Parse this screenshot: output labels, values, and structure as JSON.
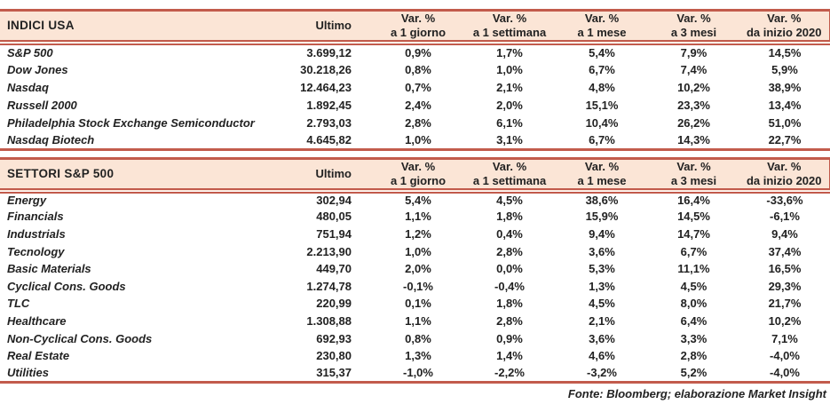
{
  "colors": {
    "line": "#c25b4c",
    "header_bg": "#fbe5d6",
    "text": "#222222"
  },
  "header_labels": {
    "ultimo": "Ultimo",
    "var": "Var. %",
    "periods": [
      "a 1 giorno",
      "a 1 settimana",
      "a 1 mese",
      "a 3 mesi",
      "da inizio 2020"
    ]
  },
  "tables": [
    {
      "title": "INDICI USA",
      "rows": [
        {
          "name": "S&P 500",
          "ultimo": "3.699,12",
          "vars": [
            "0,9%",
            "1,7%",
            "5,4%",
            "7,9%",
            "14,5%"
          ]
        },
        {
          "name": "Dow Jones",
          "ultimo": "30.218,26",
          "vars": [
            "0,8%",
            "1,0%",
            "6,7%",
            "7,4%",
            "5,9%"
          ]
        },
        {
          "name": "Nasdaq",
          "ultimo": "12.464,23",
          "vars": [
            "0,7%",
            "2,1%",
            "4,8%",
            "10,2%",
            "38,9%"
          ]
        },
        {
          "name": "Russell 2000",
          "ultimo": "1.892,45",
          "vars": [
            "2,4%",
            "2,0%",
            "15,1%",
            "23,3%",
            "13,4%"
          ]
        },
        {
          "name": "Philadelphia Stock Exchange Semiconductor",
          "ultimo": "2.793,03",
          "vars": [
            "2,8%",
            "6,1%",
            "10,4%",
            "26,2%",
            "51,0%"
          ]
        },
        {
          "name": "Nasdaq Biotech",
          "ultimo": "4.645,82",
          "vars": [
            "1,0%",
            "3,1%",
            "6,7%",
            "14,3%",
            "22,7%"
          ]
        }
      ]
    },
    {
      "title": "SETTORI S&P 500",
      "rows": [
        {
          "name": "Energy",
          "ultimo": "302,94",
          "vars": [
            "5,4%",
            "4,5%",
            "38,6%",
            "16,4%",
            "-33,6%"
          ]
        },
        {
          "name": "Financials",
          "ultimo": "480,05",
          "vars": [
            "1,1%",
            "1,8%",
            "15,9%",
            "14,5%",
            "-6,1%"
          ]
        },
        {
          "name": "Industrials",
          "ultimo": "751,94",
          "vars": [
            "1,2%",
            "0,4%",
            "9,4%",
            "14,7%",
            "9,4%"
          ]
        },
        {
          "name": "Tecnology",
          "ultimo": "2.213,90",
          "vars": [
            "1,0%",
            "2,8%",
            "3,6%",
            "6,7%",
            "37,4%"
          ]
        },
        {
          "name": "Basic Materials",
          "ultimo": "449,70",
          "vars": [
            "2,0%",
            "0,0%",
            "5,3%",
            "11,1%",
            "16,5%"
          ]
        },
        {
          "name": "Cyclical Cons. Goods",
          "ultimo": "1.274,78",
          "vars": [
            "-0,1%",
            "-0,4%",
            "1,3%",
            "4,5%",
            "29,3%"
          ]
        },
        {
          "name": "TLC",
          "ultimo": "220,99",
          "vars": [
            "0,1%",
            "1,8%",
            "4,5%",
            "8,0%",
            "21,7%"
          ]
        },
        {
          "name": "Healthcare",
          "ultimo": "1.308,88",
          "vars": [
            "1,1%",
            "2,8%",
            "2,1%",
            "6,4%",
            "10,2%"
          ]
        },
        {
          "name": "Non-Cyclical Cons. Goods",
          "ultimo": "692,93",
          "vars": [
            "0,8%",
            "0,9%",
            "3,6%",
            "3,3%",
            "7,1%"
          ]
        },
        {
          "name": "Real Estate",
          "ultimo": "230,80",
          "vars": [
            "1,3%",
            "1,4%",
            "4,6%",
            "2,8%",
            "-4,0%"
          ]
        },
        {
          "name": "Utilities",
          "ultimo": "315,37",
          "vars": [
            "-1,0%",
            "-2,2%",
            "-3,2%",
            "5,2%",
            "-4,0%"
          ]
        }
      ]
    }
  ],
  "footer": "Fonte: Bloomberg; elaborazione Market Insight"
}
